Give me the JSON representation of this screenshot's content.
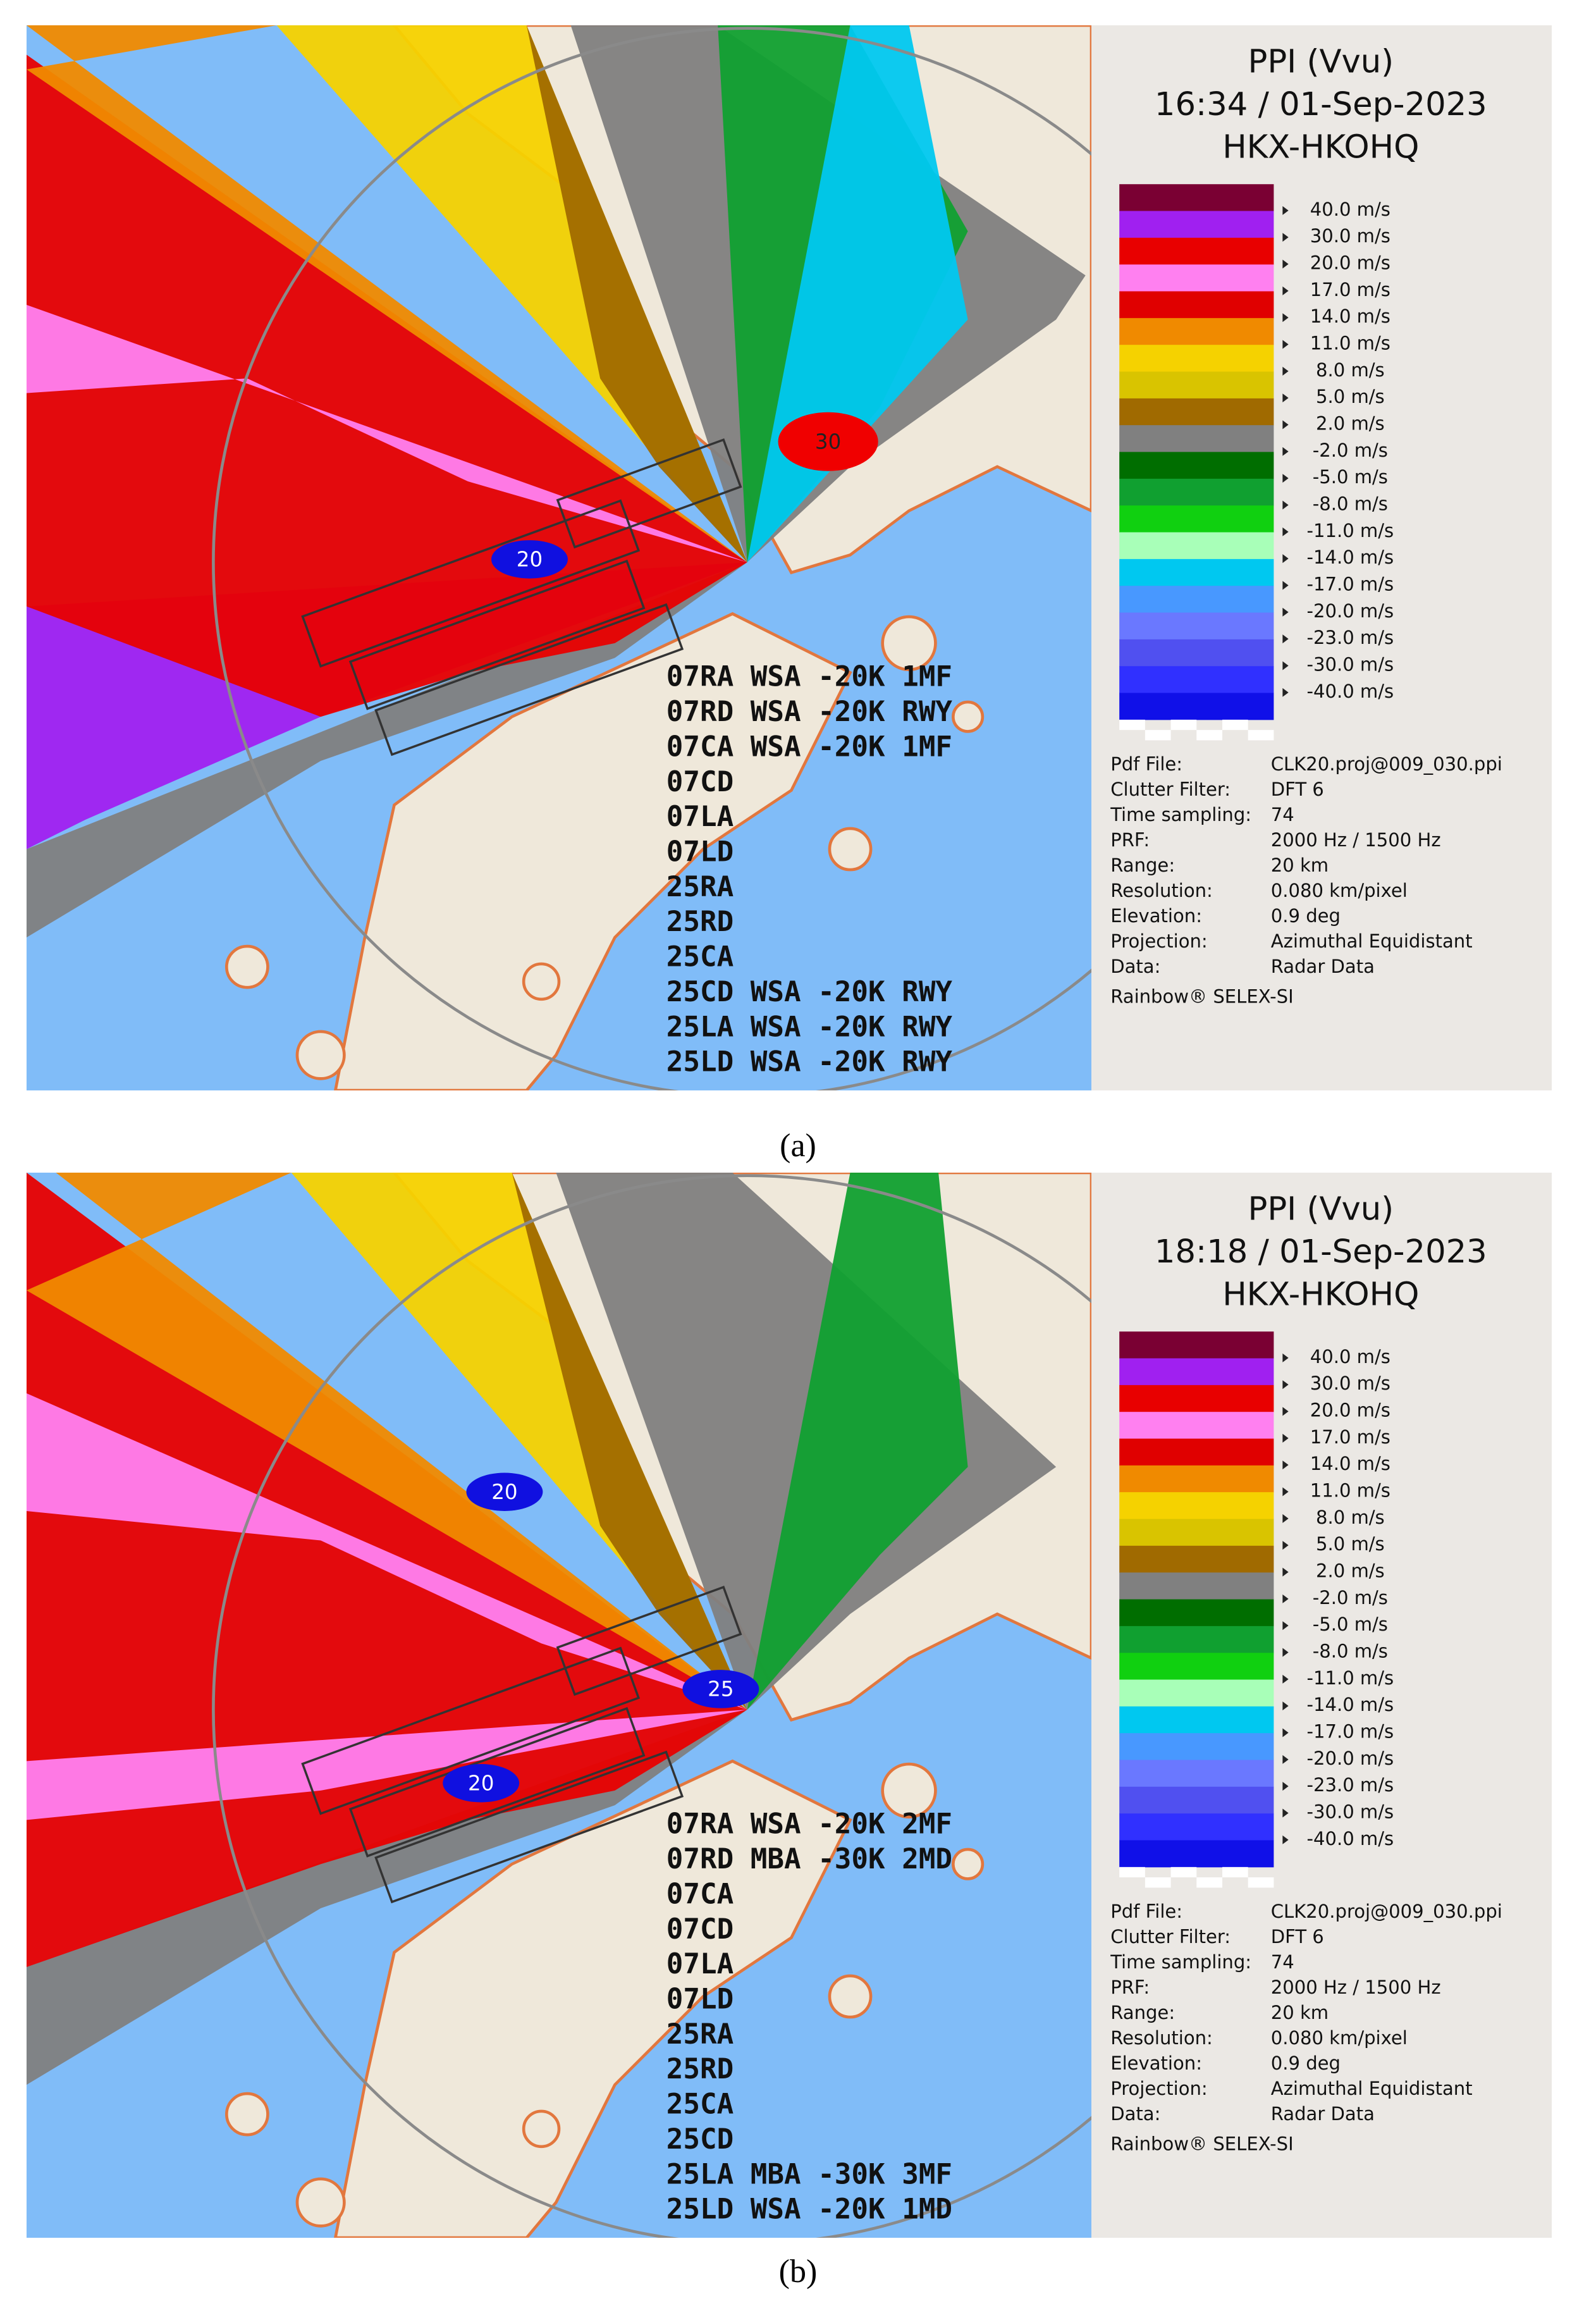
{
  "colorbar": [
    "#7a0033",
    "#a020f0",
    "#e80000",
    "#ff80f0",
    "#e00000",
    "#f08a00",
    "#f5d200",
    "#d9c400",
    "#a06a00",
    "#808080",
    "#006e00",
    "#10a030",
    "#10d010",
    "#a8ffb8",
    "#00c8f0",
    "#4898ff",
    "#6a78ff",
    "#5050f0",
    "#3030ff",
    "#1010e8"
  ],
  "panels": [
    {
      "title": [
        "PPI (Vvu)",
        "16:34 / 01-Sep-2023",
        "HKX-HKOHQ"
      ],
      "legend": [
        "40.0 m/s",
        "30.0 m/s",
        "20.0 m/s",
        "17.0 m/s",
        "14.0 m/s",
        "11.0 m/s",
        "8.0 m/s",
        "5.0 m/s",
        "2.0 m/s",
        "-2.0 m/s",
        "-5.0 m/s",
        "-8.0 m/s",
        "-11.0 m/s",
        "-14.0 m/s",
        "-17.0 m/s",
        "-20.0 m/s",
        "-23.0 m/s",
        "-30.0 m/s",
        "-40.0 m/s"
      ],
      "info": [
        [
          "Pdf File:",
          "CLK20.proj@009_030.ppi"
        ],
        [
          "Clutter Filter:",
          "DFT 6"
        ],
        [
          "Time sampling:",
          "74"
        ],
        [
          "PRF:",
          "2000 Hz / 1500 Hz"
        ],
        [
          "Range:",
          "20 km"
        ],
        [
          "Resolution:",
          "0.080 km/pixel"
        ],
        [
          "Elevation:",
          "0.9 deg"
        ],
        [
          "Projection:",
          "Azimuthal Equidistant"
        ],
        [
          "Data:",
          "Radar Data"
        ]
      ],
      "credit": "Rainbow® SELEX-SI",
      "alerts": [
        "07RA WSA -20K 1MF",
        "07RD WSA -20K RWY",
        "07CA WSA -20K 1MF",
        "07CD",
        "07LA",
        "07LD",
        "25RA",
        "25RD",
        "25CA",
        "25CD WSA -20K RWY",
        "25LA WSA -20K RWY",
        "25LD WSA -20K RWY"
      ],
      "markers": [
        {
          "label": "20",
          "color": "#1010e0"
        },
        {
          "label": "30",
          "color": "#f00000"
        }
      ],
      "caption": "(a)"
    },
    {
      "title": [
        "PPI (Vvu)",
        "18:18 / 01-Sep-2023",
        "HKX-HKOHQ"
      ],
      "legend": [
        "40.0 m/s",
        "30.0 m/s",
        "20.0 m/s",
        "17.0 m/s",
        "14.0 m/s",
        "11.0 m/s",
        "8.0 m/s",
        "5.0 m/s",
        "2.0 m/s",
        "-2.0 m/s",
        "-5.0 m/s",
        "-8.0 m/s",
        "-11.0 m/s",
        "-14.0 m/s",
        "-17.0 m/s",
        "-20.0 m/s",
        "-23.0 m/s",
        "-30.0 m/s",
        "-40.0 m/s"
      ],
      "info": [
        [
          "Pdf File:",
          "CLK20.proj@009_030.ppi"
        ],
        [
          "Clutter Filter:",
          "DFT 6"
        ],
        [
          "Time sampling:",
          "74"
        ],
        [
          "PRF:",
          "2000 Hz / 1500 Hz"
        ],
        [
          "Range:",
          "20 km"
        ],
        [
          "Resolution:",
          "0.080 km/pixel"
        ],
        [
          "Elevation:",
          "0.9 deg"
        ],
        [
          "Projection:",
          "Azimuthal Equidistant"
        ],
        [
          "Data:",
          "Radar Data"
        ]
      ],
      "credit": "Rainbow® SELEX-SI",
      "alerts": [
        "07RA WSA -20K 2MF",
        "07RD MBA -30K 2MD",
        "07CA",
        "07CD",
        "07LA",
        "07LD",
        "25RA",
        "25RD",
        "25CA",
        "25CD",
        "25LA MBA -30K 3MF",
        "25LD WSA -20K 1MD"
      ],
      "markers": [
        {
          "label": "20",
          "color": "#1010e0"
        },
        {
          "label": "25",
          "color": "#1010e0"
        },
        {
          "label": "20",
          "color": "#1010e0"
        }
      ],
      "caption": "(b)"
    }
  ]
}
